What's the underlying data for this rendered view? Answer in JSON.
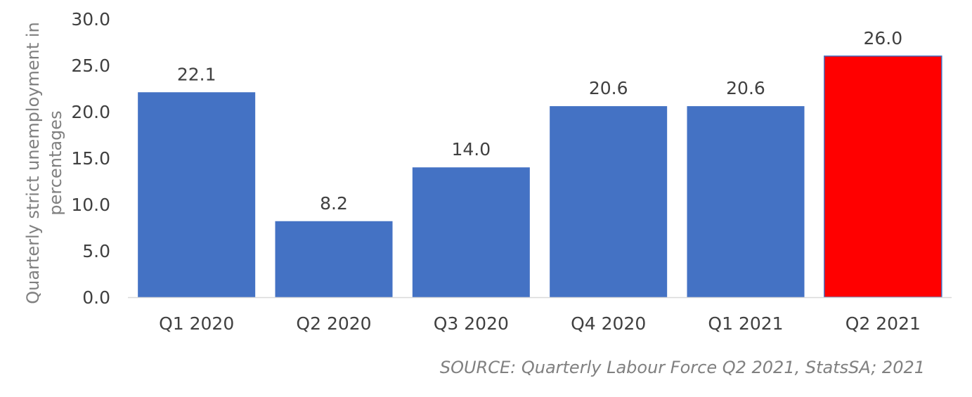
{
  "chart_data": {
    "type": "bar",
    "categories": [
      "Q1 2020",
      "Q2 2020",
      "Q3 2020",
      "Q4 2020",
      "Q1 2021",
      "Q2 2021"
    ],
    "values": [
      22.1,
      8.2,
      14.0,
      20.6,
      20.6,
      26.0
    ],
    "value_labels": [
      "22.1",
      "8.2",
      "14.0",
      "20.6",
      "20.6",
      "26.0"
    ],
    "ylabel_lines": [
      "Quarterly strict unemployment in",
      "percentages"
    ],
    "xlabel": "",
    "ylim": [
      0,
      30
    ],
    "yticks": [
      0,
      5,
      10,
      15,
      20,
      25,
      30
    ],
    "ytick_labels": [
      "0.0",
      "5.0",
      "10.0",
      "15.0",
      "20.0",
      "25.0",
      "30.0"
    ],
    "grid": false,
    "legend": "none",
    "bar_colors": [
      "#4472C4",
      "#4472C4",
      "#4472C4",
      "#4472C4",
      "#4472C4",
      "#FF0000"
    ],
    "axis_color": "#D9D9D9",
    "source": "SOURCE: Quarterly Labour Force Q2 2021, StatsSA; 2021"
  }
}
